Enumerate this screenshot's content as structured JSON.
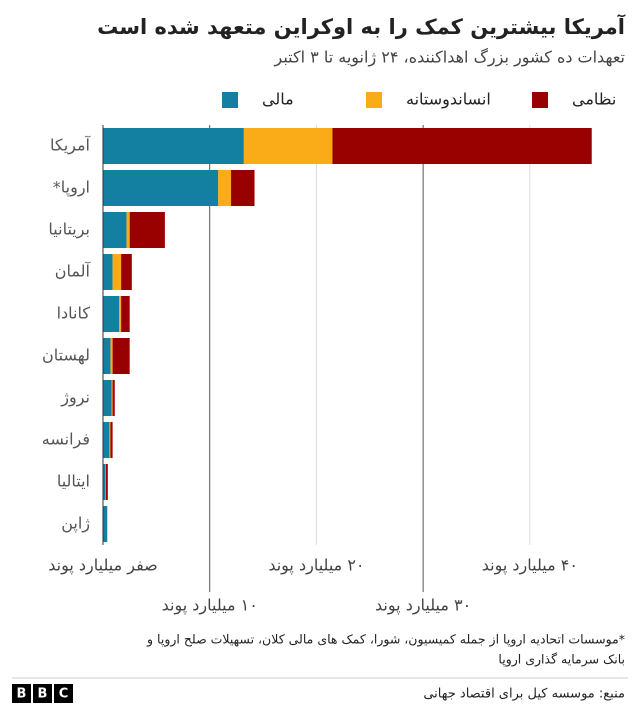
{
  "chart_data": {
    "type": "bar",
    "title": "آمریکا بیشترین کمک را به اوکراین متعهد شده است",
    "subtitle": "تعهدات ده کشور بزرگ اهداکننده، ۲۴ ژانویه تا ۳ اکتبر",
    "categories": [
      "آمریکا",
      "اروپا*",
      "بریتانیا",
      "آلمان",
      "کانادا",
      "لهستان",
      "نروژ",
      "فرانسه",
      "ایتالیا",
      "ژاپن"
    ],
    "series": [
      {
        "name": "مالی",
        "color": "#1380a1",
        "values": [
          13.2,
          10.8,
          2.2,
          0.9,
          1.5,
          0.7,
          0.8,
          0.6,
          0.2,
          0.4
        ]
      },
      {
        "name": "انساندوستانه",
        "color": "#faab18",
        "values": [
          8.3,
          1.2,
          0.3,
          0.8,
          0.2,
          0.2,
          0.1,
          0.1,
          0.05,
          0
        ]
      },
      {
        "name": "نظامی",
        "color": "#990000",
        "values": [
          24.3,
          2.2,
          3.3,
          1.0,
          0.8,
          1.6,
          0.2,
          0.2,
          0.2,
          0
        ]
      }
    ],
    "xlim": [
      0,
      47.7
    ],
    "xticks": [
      {
        "value": 0,
        "label": "صفر میلیارد پوند"
      },
      {
        "value": 10,
        "label": "۱۰ میلیارد پوند"
      },
      {
        "value": 20,
        "label": "۲۰ میلیارد پوند"
      },
      {
        "value": 30,
        "label": "۳۰ میلیارد پوند"
      },
      {
        "value": 40,
        "label": "۴۰ میلیارد پوند"
      }
    ],
    "grid": true,
    "footnote": [
      "*موسسات اتحادیه اروپا از جمله کمیسیون، شورا، کمک های مالی کلان، تسهیلات صلح اروپا و",
      "بانک سرمایه گذاری اروپا"
    ],
    "source": "منبع: موسسه کیل برای اقتصاد جهانی",
    "logo": [
      "B",
      "B",
      "C"
    ]
  }
}
